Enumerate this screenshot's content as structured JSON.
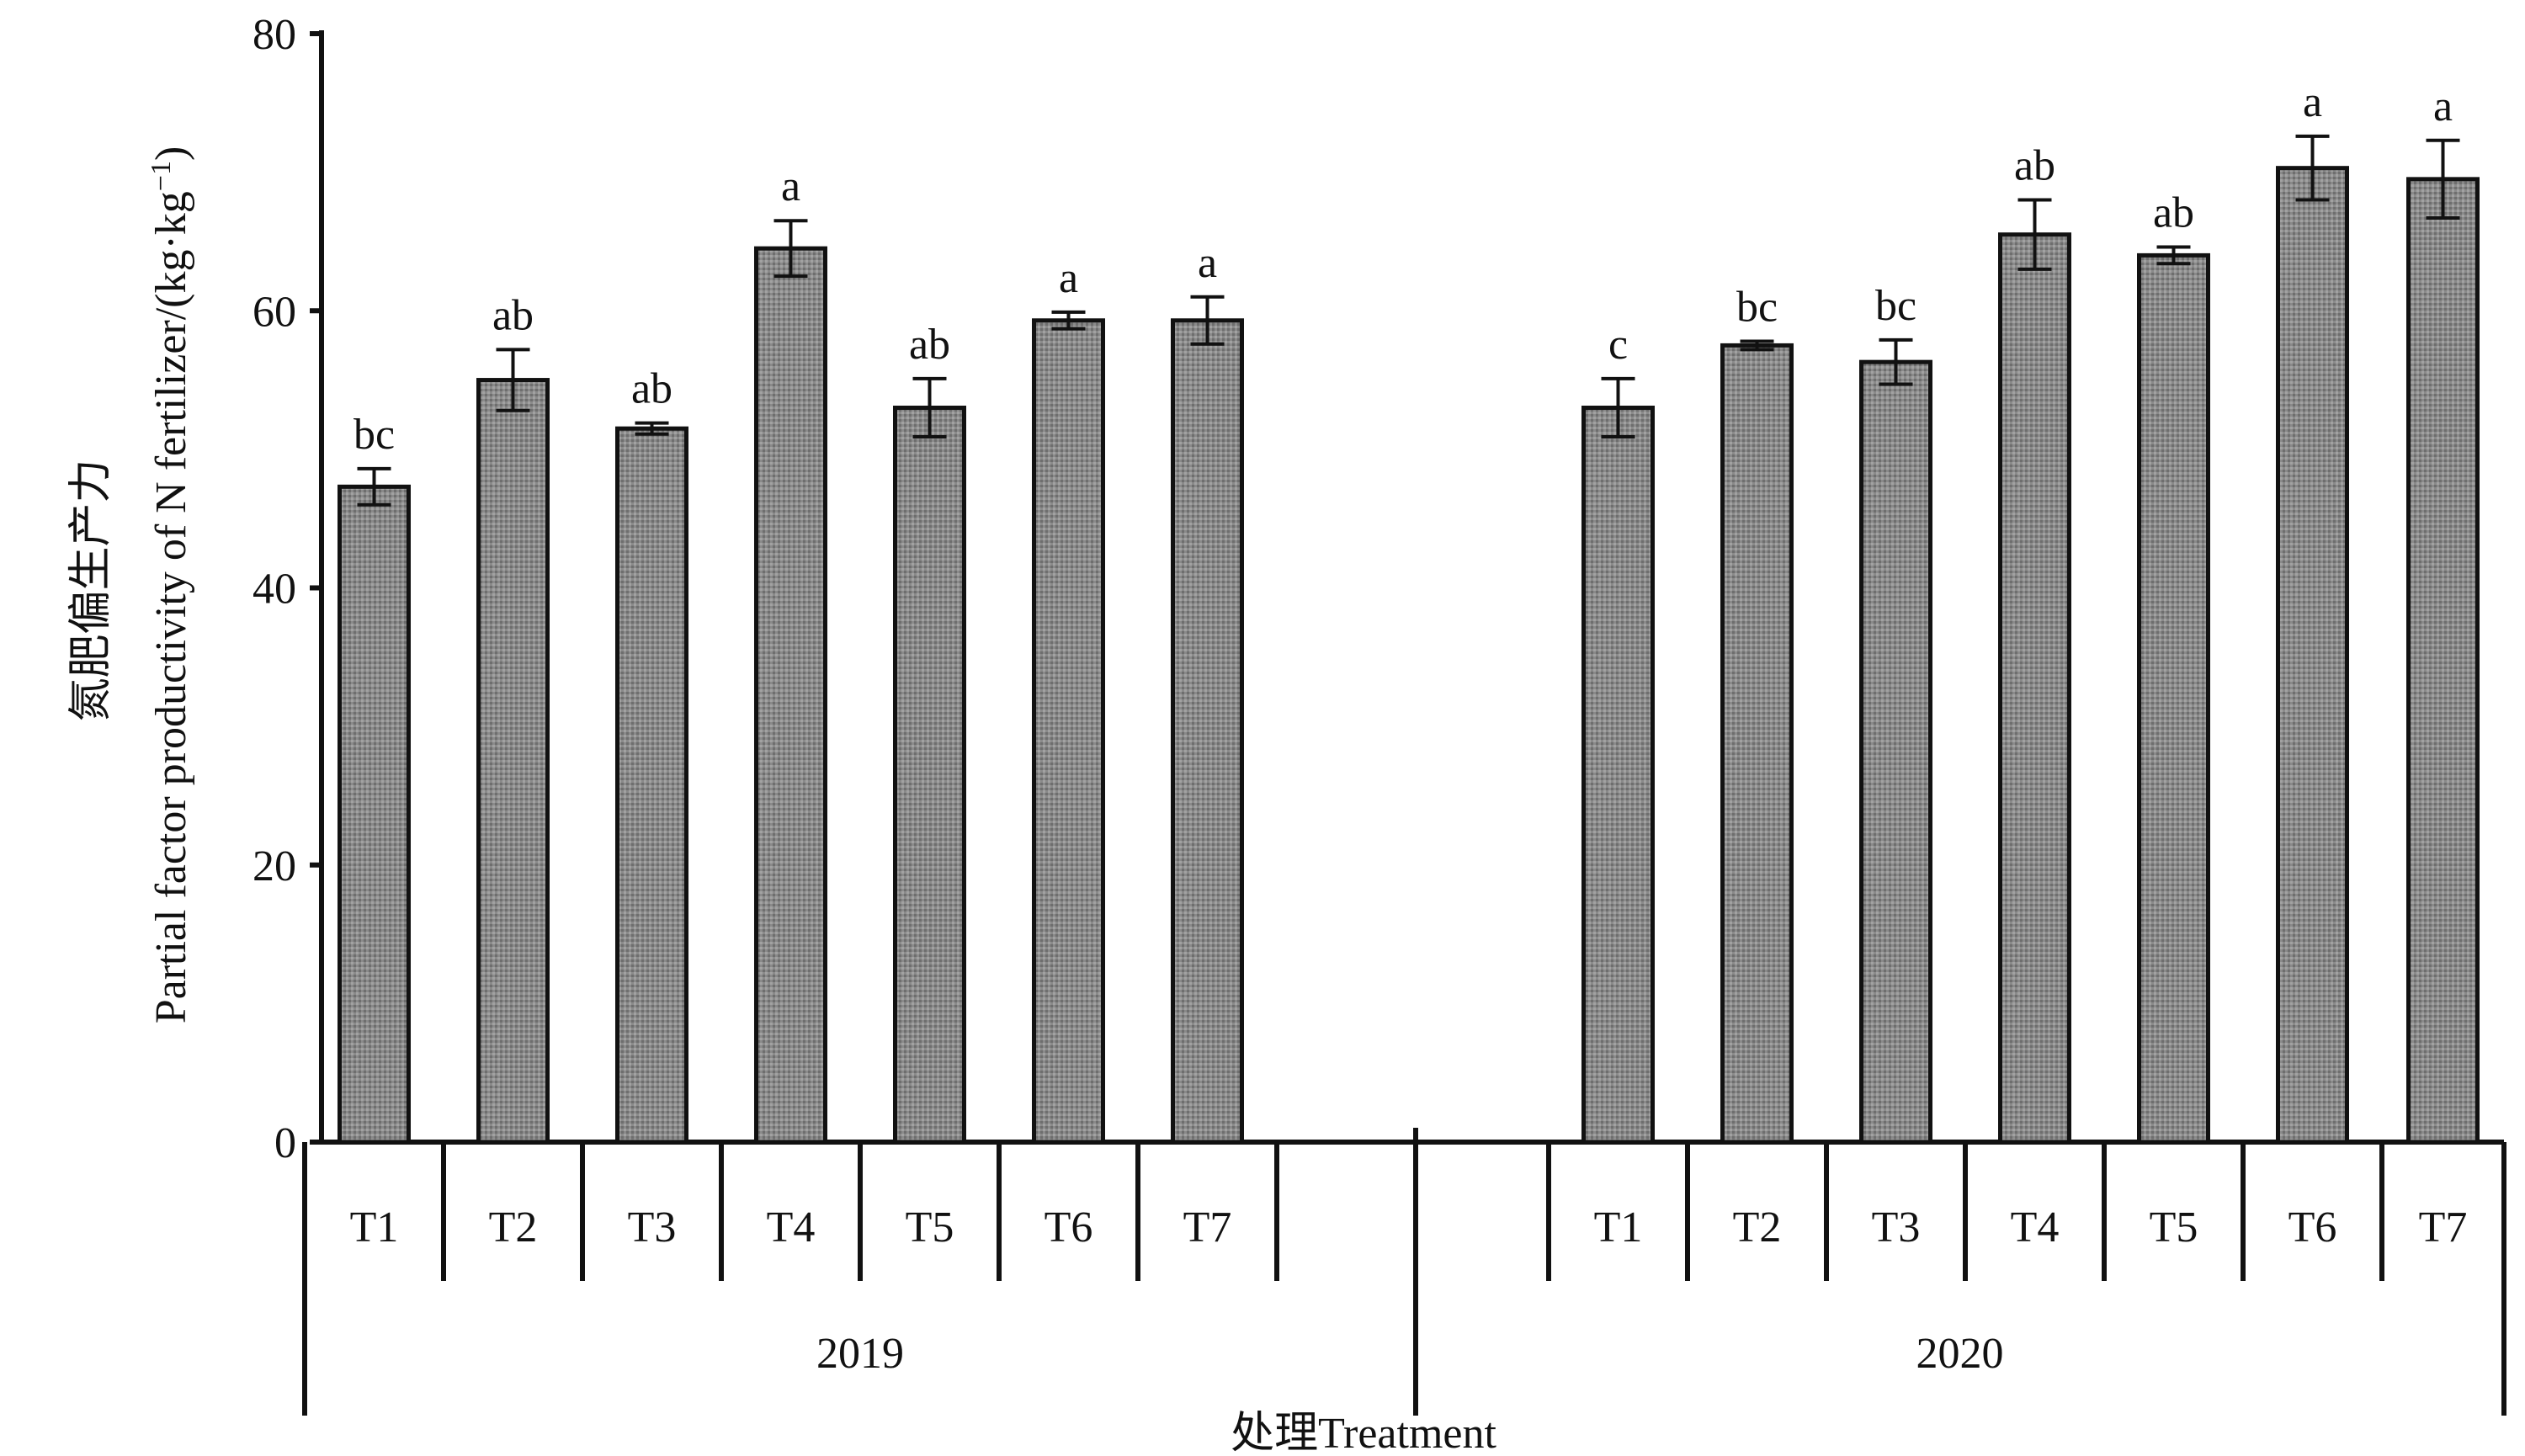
{
  "chart_data": {
    "type": "bar",
    "ylabel": "氮肥偏生产力 Partial factor productivity of N fertilizer/(kg·kg⁻¹)",
    "ylabel_cn": "氮肥偏生产力",
    "ylabel_en": "Partial factor productivity of N fertilizer/(kg·kg",
    "ylabel_sup": "−1",
    "ylabel_close": ")",
    "xlabel": "处理Treatment",
    "ylim": [
      0,
      80
    ],
    "yticks": [
      "0",
      "20",
      "40",
      "60",
      "80"
    ],
    "grid": false,
    "bar_color": "#8a8a8a",
    "groups": [
      {
        "name": "2019",
        "categories": [
          "T1",
          "T2",
          "T3",
          "T4",
          "T5",
          "T6",
          "T7"
        ],
        "values": [
          47.3,
          55.0,
          51.5,
          64.5,
          53.0,
          59.3,
          59.3
        ],
        "errors": [
          1.3,
          2.2,
          0.4,
          2.0,
          2.1,
          0.6,
          1.7
        ],
        "significance": [
          "bc",
          "ab",
          "ab",
          "a",
          "ab",
          "a",
          "a"
        ]
      },
      {
        "name": "2020",
        "categories": [
          "T1",
          "T2",
          "T3",
          "T4",
          "T5",
          "T6",
          "T7"
        ],
        "values": [
          53.0,
          57.5,
          56.3,
          65.5,
          64.0,
          70.3,
          69.5
        ],
        "errors": [
          2.1,
          0.3,
          1.6,
          2.5,
          0.6,
          2.3,
          2.8
        ],
        "significance": [
          "c",
          "bc",
          "bc",
          "ab",
          "ab",
          "a",
          "a"
        ]
      }
    ]
  }
}
